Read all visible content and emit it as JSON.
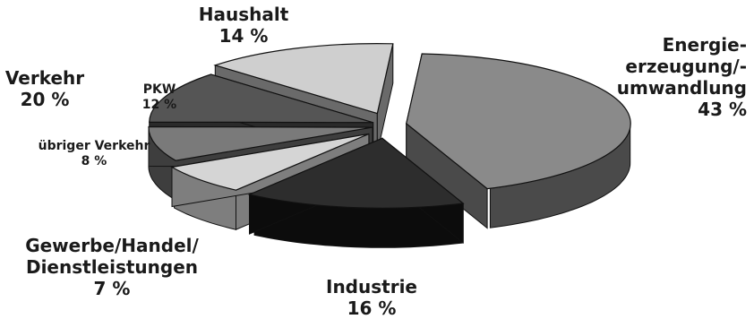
{
  "chart_data": {
    "type": "pie",
    "title": "",
    "slices": [
      {
        "label": "Energieerzeugung/-umwandlung",
        "value": 43,
        "display": "43 %",
        "color": "#8a8a8a",
        "side_color": "#4a4a4a",
        "explode": 1.0
      },
      {
        "label": "Industrie",
        "value": 16,
        "display": "16 %",
        "color": "#2d2d2d",
        "side_color": "#0c0c0c",
        "explode": 1.0
      },
      {
        "label": "Gewerbe/Handel/Dienstleistungen",
        "value": 7,
        "display": "7 %",
        "color": "#d5d5d5",
        "side_color": "#7e7e7e",
        "explode": 1.0
      },
      {
        "label": "übriger Verkehr",
        "value": 8,
        "display": "8 %",
        "color": "#7a7a7a",
        "side_color": "#3e3e3e",
        "explode": 0.6
      },
      {
        "label": "PKW",
        "value": 12,
        "display": "12 %",
        "color": "#555555",
        "side_color": "#2a2a2a",
        "explode": 0.6
      },
      {
        "label": "Haushalt",
        "value": 14,
        "display": "14 %",
        "color": "#cfcfcf",
        "side_color": "#6a6a6a",
        "explode": 1.0
      }
    ],
    "group_labels": [
      {
        "label": "Verkehr",
        "display": "20 %"
      }
    ]
  },
  "labels": {
    "energie_lines": [
      "Energie-",
      "erzeugung/-",
      "umwandlung"
    ],
    "energie_pct": "43 %",
    "industrie": "Industrie",
    "industrie_pct": "16 %",
    "gewerbe_lines": [
      "Gewerbe/Handel/",
      "Dienstleistungen"
    ],
    "gewerbe_pct": "7 %",
    "uebriger": "übriger Verkehr",
    "uebriger_pct": "8 %",
    "pkw": "PKW",
    "pkw_pct": "12 %",
    "verkehr": "Verkehr",
    "verkehr_pct": "20 %",
    "haushalt": "Haushalt",
    "haushalt_pct": "14 %"
  }
}
